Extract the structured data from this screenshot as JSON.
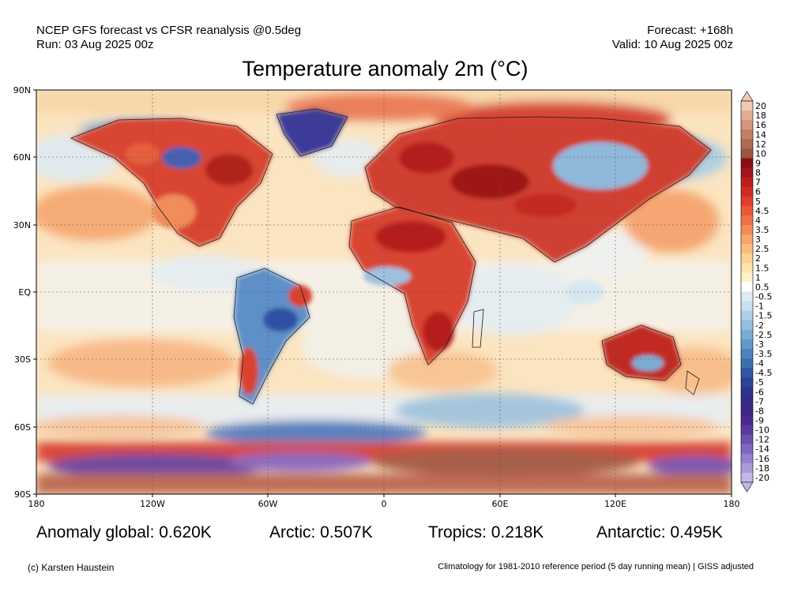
{
  "header": {
    "line1_left": "NCEP GFS forecast vs CFSR reanalysis @0.5deg",
    "line2_left": "Run: 03 Aug 2025 00z",
    "line1_right": "Forecast: +168h",
    "line2_right": "Valid: 10 Aug 2025 00z"
  },
  "title": "Temperature anomaly 2m (°C)",
  "axes": {
    "lat_labels": [
      "90N",
      "60N",
      "30N",
      "EQ",
      "30S",
      "60S",
      "90S"
    ],
    "lon_labels": [
      "180",
      "120W",
      "60W",
      "0",
      "60E",
      "120E",
      "180"
    ]
  },
  "colorbar": {
    "labels": [
      "20",
      "18",
      "16",
      "14",
      "12",
      "10",
      "9",
      "8",
      "7",
      "6",
      "5",
      "4.5",
      "4",
      "3.5",
      "3",
      "2.5",
      "2",
      "1.5",
      "1",
      "0.5",
      "-0.5",
      "-1",
      "-1.5",
      "-2",
      "-2.5",
      "-3",
      "-3.5",
      "-4",
      "-4.5",
      "-5",
      "-6",
      "-7",
      "-8",
      "-9",
      "-10",
      "-12",
      "-14",
      "-16",
      "-18",
      "-20"
    ],
    "colors": [
      "#f0c8b4",
      "#e2ae96",
      "#d5957b",
      "#c27f66",
      "#ae6a52",
      "#9a5540",
      "#8a0f14",
      "#a3151a",
      "#bb1e1f",
      "#cf2b22",
      "#df3e2a",
      "#e95838",
      "#f07047",
      "#f58a58",
      "#f8a46a",
      "#fabd80",
      "#fcd296",
      "#fde3ae",
      "#fef1c9",
      "#ffffff",
      "#dcecf6",
      "#c6e0f0",
      "#add0e8",
      "#94bfde",
      "#7aacd3",
      "#6299c8",
      "#4d84bc",
      "#3c6fb0",
      "#3058a3",
      "#2a4595",
      "#2c3589",
      "#352b84",
      "#3f2585",
      "#4a2a8e",
      "#5a3a9c",
      "#6d4fae",
      "#8166c0",
      "#957fcf",
      "#aa9bdc",
      "#c2b8e8"
    ]
  },
  "stats": {
    "global": "Anomaly global: 0.620K",
    "arctic": "Arctic: 0.507K",
    "tropics": "Tropics: 0.218K",
    "antarctic": "Antarctic: 0.495K"
  },
  "footer": {
    "left": "(c) Karsten Haustein",
    "right": "Climatology for 1981-2010 reference period (5 day running mean) | GISS adjusted"
  }
}
